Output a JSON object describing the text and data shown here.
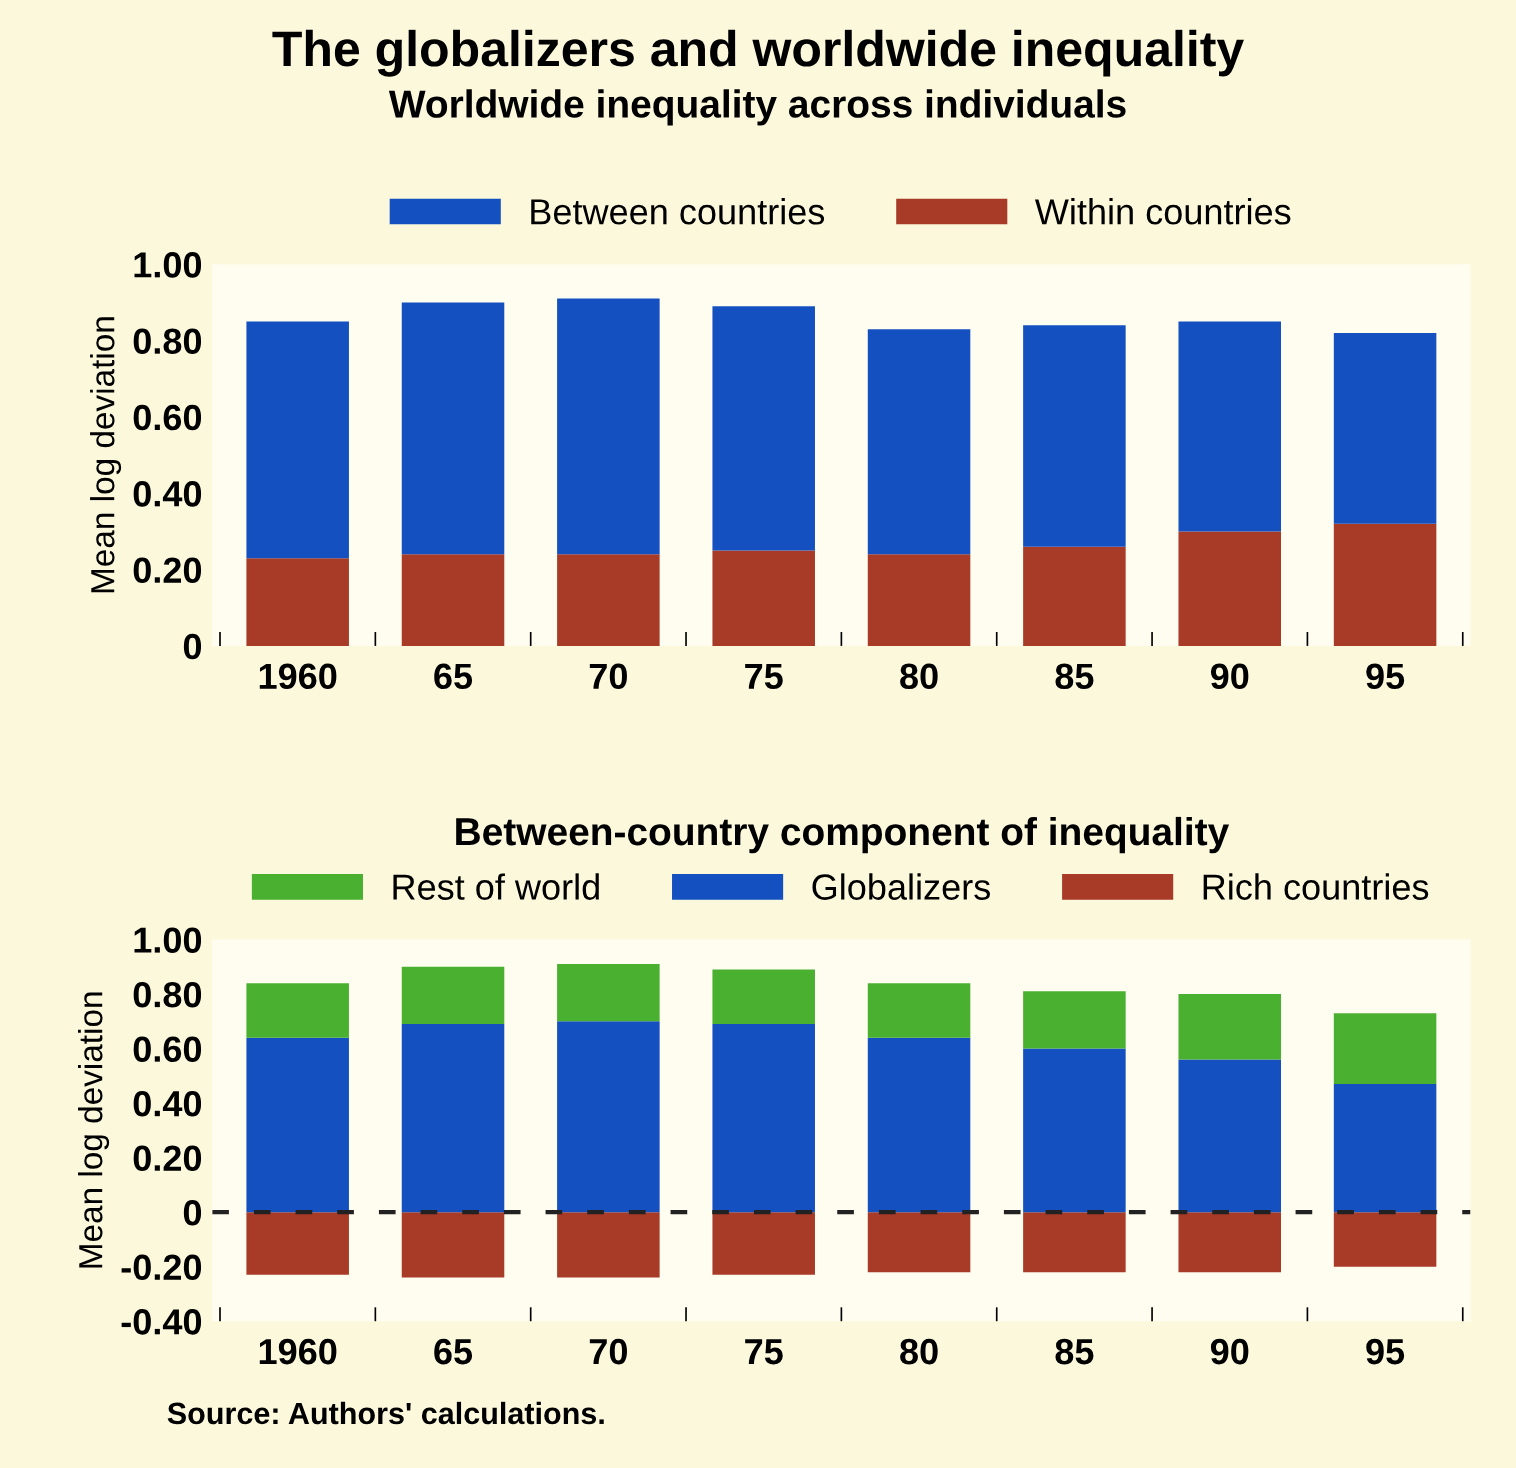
{
  "chart_data": [
    {
      "type": "bar",
      "stacked": true,
      "title": "The globalizers and worldwide inequality",
      "subtitle": "Worldwide inequality across individuals",
      "ylabel": "Mean log deviation",
      "categories": [
        "1960",
        "65",
        "70",
        "75",
        "80",
        "85",
        "90",
        "95"
      ],
      "series": [
        {
          "name": "Within countries",
          "color": "#a83a28",
          "values": [
            0.23,
            0.24,
            0.24,
            0.25,
            0.24,
            0.26,
            0.3,
            0.32
          ]
        },
        {
          "name": "Between countries",
          "color": "#1450c0",
          "values": [
            0.62,
            0.66,
            0.67,
            0.64,
            0.59,
            0.58,
            0.55,
            0.5
          ]
        }
      ],
      "ylim": [
        0,
        1.0
      ],
      "yticks": [
        0,
        {
          "value": 0.2,
          "label": "0.20"
        },
        {
          "value": 0.4,
          "label": "0.40"
        },
        {
          "value": 0.6,
          "label": "0.60"
        },
        {
          "value": 0.8,
          "label": "0.80"
        },
        {
          "value": 1.0,
          "label": "1.00"
        }
      ],
      "legend": "top"
    },
    {
      "type": "bar",
      "stacked": true,
      "title": "Between-country component of inequality",
      "ylabel": "Mean log deviation",
      "categories": [
        "1960",
        "65",
        "70",
        "75",
        "80",
        "85",
        "90",
        "95"
      ],
      "series": [
        {
          "name": "Rich countries",
          "color": "#a83a28",
          "values": [
            -0.23,
            -0.24,
            -0.24,
            -0.23,
            -0.22,
            -0.22,
            -0.22,
            -0.2
          ]
        },
        {
          "name": "Globalizers",
          "color": "#1450c0",
          "values": [
            0.64,
            0.69,
            0.7,
            0.69,
            0.64,
            0.6,
            0.56,
            0.47
          ]
        },
        {
          "name": "Rest of world",
          "color": "#4ab030",
          "values": [
            0.2,
            0.21,
            0.21,
            0.2,
            0.2,
            0.21,
            0.24,
            0.26
          ]
        }
      ],
      "ylim": [
        -0.4,
        1.0
      ],
      "yticks": [
        {
          "value": -0.4,
          "label": "-0.40"
        },
        {
          "value": -0.2,
          "label": "-0.20"
        },
        0,
        {
          "value": 0.2,
          "label": "0.20"
        },
        {
          "value": 0.4,
          "label": "0.40"
        },
        {
          "value": 0.6,
          "label": "0.60"
        },
        {
          "value": 0.8,
          "label": "0.80"
        },
        {
          "value": 1.0,
          "label": "1.00"
        }
      ],
      "ref_lines": [
        {
          "axis": "y",
          "value": 0,
          "color": "#222222",
          "line_style": "dashed"
        }
      ],
      "legend": "top",
      "annotations": [
        "Source: Authors' calculations."
      ]
    }
  ]
}
